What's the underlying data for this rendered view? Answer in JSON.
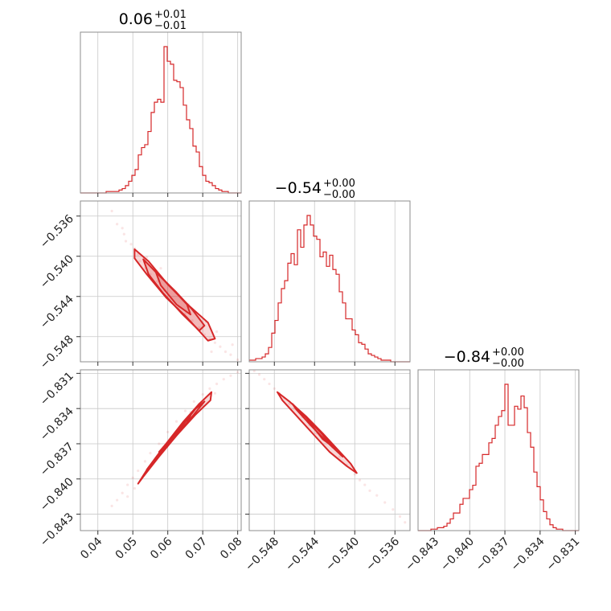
{
  "figure": {
    "accent_color": "#d62728"
  },
  "chart_data": {
    "type": "corner",
    "parameters": [
      {
        "title": "0.06",
        "err_plus": "+0.01",
        "err_minus": "−0.01",
        "range": [
          0.035,
          0.081
        ],
        "ticks": [
          0.04,
          0.05,
          0.06,
          0.07,
          0.08
        ],
        "tick_labels": [
          "0.04",
          "0.05",
          "0.06",
          "0.07",
          "0.08"
        ]
      },
      {
        "title": "−0.54",
        "err_plus": "+0.00",
        "err_minus": "−0.00",
        "range": [
          -0.5505,
          -0.5345
        ],
        "ticks": [
          -0.548,
          -0.544,
          -0.54,
          -0.536
        ],
        "tick_labels": [
          "−0.548",
          "−0.544",
          "−0.540",
          "−0.536"
        ]
      },
      {
        "title": "−0.84",
        "err_plus": "+0.00",
        "err_minus": "−0.00",
        "range": [
          -0.8444,
          -0.8307
        ],
        "ticks": [
          -0.843,
          -0.84,
          -0.837,
          -0.834,
          -0.831
        ],
        "tick_labels": [
          "−0.843",
          "−0.840",
          "−0.837",
          "−0.834",
          "−0.831"
        ]
      }
    ],
    "histograms": [
      {
        "param": 0,
        "bin_start": 0.035,
        "bin_width": 0.00092,
        "counts": [
          0,
          0,
          0,
          0,
          0,
          0,
          0,
          0,
          1,
          1,
          1,
          1,
          2,
          3,
          5,
          8,
          12,
          16,
          26,
          31,
          33,
          42,
          55,
          62,
          64,
          62,
          100,
          90,
          88,
          77,
          76,
          72,
          60,
          50,
          44,
          32,
          28,
          18,
          12,
          8,
          7,
          5,
          3,
          2,
          1,
          1,
          0,
          0,
          0,
          0
        ]
      },
      {
        "param": 1,
        "bin_start": -0.5505,
        "bin_width": 0.00032,
        "counts": [
          1,
          1,
          2,
          2,
          3,
          5,
          9,
          18,
          26,
          37,
          46,
          51,
          62,
          68,
          61,
          83,
          72,
          86,
          92,
          86,
          79,
          77,
          66,
          69,
          60,
          67,
          58,
          55,
          44,
          37,
          27,
          27,
          20,
          17,
          12,
          11,
          8,
          5,
          4,
          3,
          2,
          1,
          1,
          1,
          0,
          0,
          0,
          0,
          0,
          0
        ]
      },
      {
        "param": 2,
        "bin_start": -0.8444,
        "bin_width": 0.000274,
        "counts": [
          0,
          0,
          0,
          0,
          1,
          1,
          2,
          2,
          3,
          5,
          8,
          12,
          12,
          18,
          22,
          22,
          28,
          31,
          44,
          46,
          52,
          52,
          60,
          63,
          72,
          78,
          82,
          100,
          72,
          72,
          85,
          83,
          92,
          84,
          67,
          57,
          40,
          30,
          21,
          13,
          8,
          4,
          2,
          1,
          1,
          0,
          0,
          0,
          0,
          0
        ]
      }
    ],
    "pairs": [
      {
        "x_param": 0,
        "y_param": 1,
        "samples": [
          [
            0.044,
            -0.5355
          ],
          [
            0.0455,
            -0.5368
          ],
          [
            0.047,
            -0.5372
          ],
          [
            0.048,
            -0.5385
          ],
          [
            0.0495,
            -0.5388
          ],
          [
            0.0505,
            -0.5392
          ],
          [
            0.0515,
            -0.5398
          ],
          [
            0.052,
            -0.5405
          ],
          [
            0.0535,
            -0.5412
          ],
          [
            0.055,
            -0.5418
          ],
          [
            0.057,
            -0.5425
          ],
          [
            0.059,
            -0.5434
          ],
          [
            0.061,
            -0.5442
          ],
          [
            0.063,
            -0.5451
          ],
          [
            0.065,
            -0.5457
          ],
          [
            0.067,
            -0.5464
          ],
          [
            0.069,
            -0.5471
          ],
          [
            0.0705,
            -0.5478
          ],
          [
            0.072,
            -0.5482
          ],
          [
            0.0735,
            -0.5486
          ],
          [
            0.075,
            -0.549
          ],
          [
            0.0765,
            -0.5495
          ],
          [
            0.078,
            -0.5498
          ],
          [
            0.08,
            -0.5503
          ],
          [
            0.074,
            -0.5475
          ],
          [
            0.071,
            -0.5465
          ],
          [
            0.066,
            -0.5448
          ],
          [
            0.058,
            -0.5412
          ],
          [
            0.054,
            -0.5401
          ],
          [
            0.0475,
            -0.5378
          ],
          [
            0.0725,
            -0.5495
          ],
          [
            0.0785,
            -0.5488
          ]
        ],
        "contours": [
          [
            [
              0.0505,
              -0.5393
            ],
            [
              0.0545,
              -0.5405
            ],
            [
              0.06,
              -0.5428
            ],
            [
              0.066,
              -0.5449
            ],
            [
              0.0715,
              -0.5466
            ],
            [
              0.0735,
              -0.5482
            ],
            [
              0.0715,
              -0.5484
            ],
            [
              0.0655,
              -0.5461
            ],
            [
              0.0595,
              -0.5441
            ],
            [
              0.054,
              -0.5418
            ],
            [
              0.0505,
              -0.5402
            ]
          ],
          [
            [
              0.053,
              -0.5403
            ],
            [
              0.0575,
              -0.5419
            ],
            [
              0.0625,
              -0.5436
            ],
            [
              0.067,
              -0.5453
            ],
            [
              0.0705,
              -0.5469
            ],
            [
              0.069,
              -0.5474
            ],
            [
              0.064,
              -0.5457
            ],
            [
              0.0585,
              -0.5436
            ],
            [
              0.0545,
              -0.5418
            ]
          ],
          [
            [
              0.0565,
              -0.5415
            ],
            [
              0.0615,
              -0.5433
            ],
            [
              0.0655,
              -0.5448
            ],
            [
              0.0665,
              -0.5458
            ],
            [
              0.0625,
              -0.5448
            ],
            [
              0.058,
              -0.5429
            ]
          ]
        ]
      },
      {
        "x_param": 0,
        "y_param": 2,
        "samples": [
          [
            0.044,
            -0.8423
          ],
          [
            0.0455,
            -0.8418
          ],
          [
            0.047,
            -0.8412
          ],
          [
            0.0485,
            -0.8405
          ],
          [
            0.05,
            -0.8399
          ],
          [
            0.0515,
            -0.8393
          ],
          [
            0.0535,
            -0.8385
          ],
          [
            0.055,
            -0.8378
          ],
          [
            0.0575,
            -0.837
          ],
          [
            0.06,
            -0.836
          ],
          [
            0.0625,
            -0.8351
          ],
          [
            0.065,
            -0.8342
          ],
          [
            0.0675,
            -0.8334
          ],
          [
            0.07,
            -0.8328
          ],
          [
            0.072,
            -0.8323
          ],
          [
            0.074,
            -0.8319
          ],
          [
            0.076,
            -0.8315
          ],
          [
            0.078,
            -0.8312
          ],
          [
            0.08,
            -0.8309
          ],
          [
            0.0735,
            -0.8327
          ],
          [
            0.069,
            -0.8336
          ],
          [
            0.0665,
            -0.8343
          ],
          [
            0.0505,
            -0.8408
          ],
          [
            0.0485,
            -0.8415
          ]
        ],
        "contours": [
          [
            [
              0.0515,
              -0.8404
            ],
            [
              0.0545,
              -0.839
            ],
            [
              0.059,
              -0.8372
            ],
            [
              0.0645,
              -0.8351
            ],
            [
              0.069,
              -0.8336
            ],
            [
              0.0725,
              -0.8326
            ],
            [
              0.0722,
              -0.8333
            ],
            [
              0.068,
              -0.8345
            ],
            [
              0.0625,
              -0.8363
            ],
            [
              0.0575,
              -0.8381
            ],
            [
              0.053,
              -0.8398
            ]
          ],
          [
            [
              0.054,
              -0.8392
            ],
            [
              0.0585,
              -0.8375
            ],
            [
              0.0635,
              -0.8357
            ],
            [
              0.068,
              -0.834
            ],
            [
              0.0705,
              -0.8334
            ],
            [
              0.0675,
              -0.8345
            ],
            [
              0.0625,
              -0.8363
            ],
            [
              0.0575,
              -0.838
            ]
          ],
          [
            [
              0.0575,
              -0.8377
            ],
            [
              0.0625,
              -0.836
            ],
            [
              0.0665,
              -0.8346
            ],
            [
              0.0655,
              -0.8352
            ],
            [
              0.061,
              -0.8366
            ]
          ]
        ]
      },
      {
        "x_param": 1,
        "y_param": 2,
        "samples": [
          [
            -0.55,
            -0.8308
          ],
          [
            -0.5495,
            -0.8311
          ],
          [
            -0.549,
            -0.8315
          ],
          [
            -0.5485,
            -0.8319
          ],
          [
            -0.548,
            -0.8323
          ],
          [
            -0.5475,
            -0.8327
          ],
          [
            -0.547,
            -0.8331
          ],
          [
            -0.5465,
            -0.8336
          ],
          [
            -0.546,
            -0.834
          ],
          [
            -0.5452,
            -0.8347
          ],
          [
            -0.5445,
            -0.8354
          ],
          [
            -0.5438,
            -0.8361
          ],
          [
            -0.543,
            -0.8367
          ],
          [
            -0.5422,
            -0.8373
          ],
          [
            -0.5415,
            -0.8381
          ],
          [
            -0.5408,
            -0.8388
          ],
          [
            -0.54,
            -0.8396
          ],
          [
            -0.5395,
            -0.8401
          ],
          [
            -0.539,
            -0.8405
          ],
          [
            -0.5385,
            -0.841
          ],
          [
            -0.5378,
            -0.8414
          ],
          [
            -0.537,
            -0.842
          ],
          [
            -0.5362,
            -0.8426
          ],
          [
            -0.5355,
            -0.8432
          ],
          [
            -0.535,
            -0.8437
          ]
        ],
        "contours": [
          [
            [
              -0.5477,
              -0.8326
            ],
            [
              -0.5465,
              -0.8334
            ],
            [
              -0.5448,
              -0.8347
            ],
            [
              -0.5432,
              -0.8361
            ],
            [
              -0.5418,
              -0.8374
            ],
            [
              -0.5404,
              -0.8387
            ],
            [
              -0.5398,
              -0.8395
            ],
            [
              -0.5408,
              -0.8389
            ],
            [
              -0.5425,
              -0.8377
            ],
            [
              -0.544,
              -0.8363
            ],
            [
              -0.5457,
              -0.8347
            ],
            [
              -0.5472,
              -0.8333
            ]
          ],
          [
            [
              -0.5462,
              -0.8336
            ],
            [
              -0.5447,
              -0.8349
            ],
            [
              -0.5432,
              -0.8362
            ],
            [
              -0.5418,
              -0.8376
            ],
            [
              -0.5412,
              -0.8381
            ],
            [
              -0.5427,
              -0.8369
            ],
            [
              -0.5443,
              -0.8355
            ],
            [
              -0.5458,
              -0.8341
            ]
          ],
          [
            [
              -0.5448,
              -0.8348
            ],
            [
              -0.5435,
              -0.8359
            ],
            [
              -0.5424,
              -0.8371
            ],
            [
              -0.5432,
              -0.8366
            ],
            [
              -0.5443,
              -0.8354
            ]
          ]
        ]
      }
    ]
  }
}
